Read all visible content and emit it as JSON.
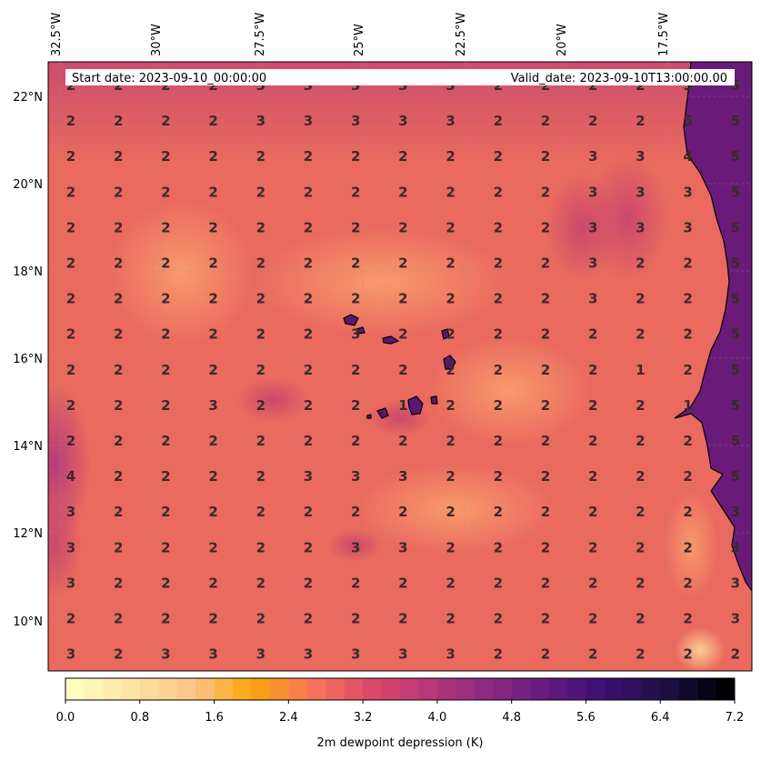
{
  "header": {
    "start_date": "Start date: 2023-09-10_00:00:00",
    "valid_date": "Valid_date: 2023-09-10T13:00:00.00"
  },
  "axes": {
    "lon_labels": [
      "32.5°W",
      "30°W",
      "27.5°W",
      "25°W",
      "22.5°W",
      "20°W",
      "17.5°W"
    ],
    "lat_labels": [
      "22°N",
      "20°N",
      "18°N",
      "16°N",
      "14°N",
      "12°N",
      "10°N"
    ]
  },
  "colorbar": {
    "label": "2m dewpoint depression (K)",
    "ticks": [
      "0.0",
      "0.8",
      "1.6",
      "2.4",
      "3.2",
      "4.0",
      "4.8",
      "5.6",
      "6.4",
      "7.2"
    ],
    "colors": [
      "#fcfdbf",
      "#fde2a3",
      "#fec488",
      "#fca50a",
      "#f8765c",
      "#de4968",
      "#b73779",
      "#8c2981",
      "#641a80",
      "#3b0f70",
      "#1c1044",
      "#000004"
    ]
  },
  "grid_values": [
    [
      2,
      2,
      2,
      2,
      3,
      3,
      3,
      3,
      3,
      2,
      2,
      2,
      2,
      5,
      5
    ],
    [
      2,
      2,
      2,
      2,
      3,
      3,
      3,
      3,
      3,
      2,
      2,
      2,
      2,
      5,
      5
    ],
    [
      2,
      2,
      2,
      2,
      2,
      2,
      2,
      2,
      2,
      2,
      2,
      3,
      3,
      4,
      5
    ],
    [
      2,
      2,
      2,
      2,
      2,
      2,
      2,
      2,
      2,
      2,
      2,
      3,
      3,
      3,
      5
    ],
    [
      2,
      2,
      2,
      2,
      2,
      2,
      2,
      2,
      2,
      2,
      2,
      3,
      3,
      3,
      5
    ],
    [
      2,
      2,
      2,
      2,
      2,
      2,
      2,
      2,
      2,
      2,
      2,
      3,
      2,
      2,
      5
    ],
    [
      2,
      2,
      2,
      2,
      2,
      2,
      2,
      2,
      2,
      2,
      2,
      3,
      2,
      2,
      5
    ],
    [
      2,
      2,
      2,
      2,
      2,
      2,
      3,
      2,
      2,
      2,
      2,
      2,
      2,
      2,
      5
    ],
    [
      2,
      2,
      2,
      2,
      2,
      2,
      2,
      2,
      2,
      2,
      2,
      2,
      1,
      2,
      5
    ],
    [
      2,
      2,
      2,
      3,
      2,
      2,
      2,
      1,
      2,
      2,
      2,
      2,
      2,
      1,
      5
    ],
    [
      2,
      2,
      2,
      2,
      2,
      2,
      2,
      2,
      2,
      2,
      2,
      2,
      2,
      2,
      5
    ],
    [
      4,
      2,
      2,
      2,
      2,
      3,
      3,
      3,
      2,
      2,
      2,
      2,
      2,
      2,
      5
    ],
    [
      3,
      2,
      2,
      2,
      2,
      2,
      2,
      2,
      2,
      2,
      2,
      2,
      2,
      2,
      3
    ],
    [
      3,
      2,
      2,
      2,
      2,
      2,
      3,
      3,
      2,
      2,
      2,
      2,
      2,
      2,
      3
    ],
    [
      3,
      2,
      2,
      2,
      2,
      2,
      2,
      2,
      2,
      2,
      2,
      2,
      2,
      2,
      3
    ],
    [
      2,
      2,
      2,
      2,
      2,
      2,
      2,
      2,
      2,
      2,
      2,
      2,
      2,
      2,
      3
    ],
    [
      3,
      2,
      3,
      3,
      3,
      3,
      3,
      3,
      3,
      2,
      2,
      2,
      2,
      2,
      2
    ]
  ]
}
